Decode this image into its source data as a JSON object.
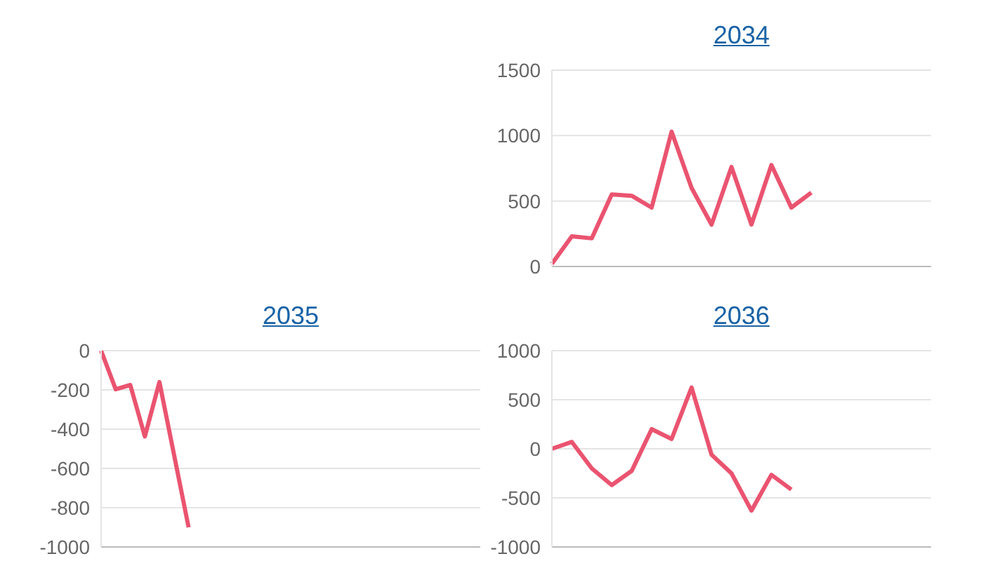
{
  "chart_data": [
    {
      "type": "line",
      "title": "2034",
      "categories": [
        null,
        null,
        null,
        null,
        null,
        null,
        null,
        null,
        null,
        null,
        null,
        null,
        null,
        null,
        null,
        null,
        null,
        null,
        null,
        null
      ],
      "series": [
        {
          "color": "#ea5470",
          "values": [
            20,
            230,
            215,
            550,
            540,
            450,
            1030,
            600,
            320,
            760,
            320,
            775,
            450,
            565,
            null,
            null,
            null,
            null,
            null,
            null
          ]
        }
      ],
      "ylim": [
        0,
        1500
      ],
      "yticks": [
        0,
        500,
        1000,
        1500
      ],
      "grid": "y",
      "tick_labels": "y",
      "marker": "none",
      "line_style": "solid"
    },
    {
      "type": "line",
      "title": "2035",
      "categories": [
        null,
        null,
        null,
        null,
        null,
        null,
        null,
        null,
        null,
        null,
        null,
        null,
        null,
        null,
        null,
        null,
        null,
        null,
        null,
        null,
        null,
        null,
        null,
        null,
        null,
        null,
        null
      ],
      "series": [
        {
          "color": "#ea5470",
          "values": [
            0,
            -197,
            -175,
            -437,
            -160,
            -530,
            -900,
            null,
            null,
            null,
            null,
            null,
            null,
            null,
            null,
            null,
            null,
            null,
            null,
            null,
            null,
            null,
            null,
            null,
            null,
            null,
            null
          ]
        }
      ],
      "ylim": [
        -1000,
        0
      ],
      "yticks": [
        -1000,
        -800,
        -600,
        -400,
        -200,
        0
      ],
      "grid": "y",
      "tick_labels": "y",
      "marker": "none",
      "line_style": "solid"
    },
    {
      "type": "line",
      "title": "2036",
      "categories": [
        null,
        null,
        null,
        null,
        null,
        null,
        null,
        null,
        null,
        null,
        null,
        null,
        null,
        null,
        null,
        null,
        null,
        null,
        null,
        null
      ],
      "series": [
        {
          "color": "#ea5470",
          "values": [
            0,
            70,
            -200,
            -370,
            -225,
            200,
            100,
            625,
            -60,
            -250,
            -630,
            -265,
            -415,
            null,
            null,
            null,
            null,
            null,
            null,
            null
          ]
        }
      ],
      "ylim": [
        -1000,
        1000
      ],
      "yticks": [
        -1000,
        -500,
        0,
        500,
        1000
      ],
      "grid": "y",
      "tick_labels": "y",
      "marker": "none",
      "line_style": "solid"
    }
  ]
}
